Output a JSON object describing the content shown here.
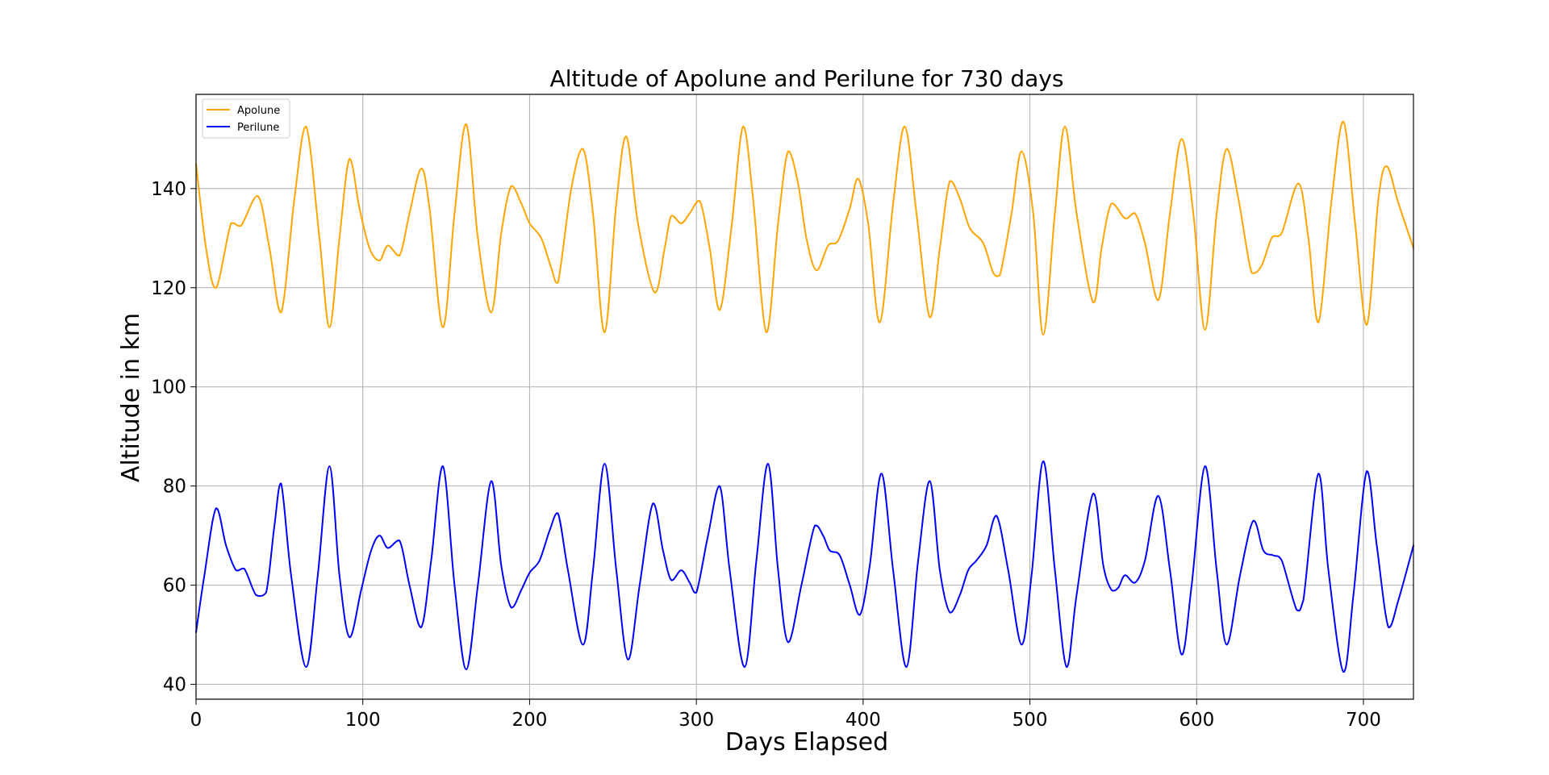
{
  "chart_data": {
    "type": "line",
    "title": "Altitude of Apolune and Perilune for 730 days",
    "xlabel": "Days Elapsed",
    "ylabel": "Altitude in km",
    "xlim": [
      0,
      730
    ],
    "ylim": [
      37,
      159
    ],
    "xticks": [
      0,
      100,
      200,
      300,
      400,
      500,
      600,
      700
    ],
    "yticks": [
      40,
      60,
      80,
      100,
      120,
      140
    ],
    "grid": true,
    "legend_position": "top-left",
    "series": [
      {
        "name": "Apolune",
        "color": "#FFA500",
        "points": [
          [
            0,
            145
          ],
          [
            6,
            128
          ],
          [
            12,
            120
          ],
          [
            21,
            133
          ],
          [
            27,
            132.5
          ],
          [
            37,
            138.5
          ],
          [
            44,
            128
          ],
          [
            51,
            115
          ],
          [
            59,
            138
          ],
          [
            66,
            152.5
          ],
          [
            74,
            130
          ],
          [
            80,
            112
          ],
          [
            86,
            130
          ],
          [
            92,
            146
          ],
          [
            98,
            136
          ],
          [
            104,
            128
          ],
          [
            110,
            125.5
          ],
          [
            115,
            128.5
          ],
          [
            122,
            126.5
          ],
          [
            128,
            135
          ],
          [
            135,
            144
          ],
          [
            140,
            136
          ],
          [
            148,
            112
          ],
          [
            155,
            135
          ],
          [
            162,
            153
          ],
          [
            169,
            130
          ],
          [
            177,
            115
          ],
          [
            183,
            131
          ],
          [
            189,
            140.5
          ],
          [
            195,
            137
          ],
          [
            200,
            133
          ],
          [
            207,
            130
          ],
          [
            213,
            124
          ],
          [
            217,
            121
          ],
          [
            225,
            140
          ],
          [
            232,
            148
          ],
          [
            238,
            135
          ],
          [
            245,
            111
          ],
          [
            252,
            137
          ],
          [
            258,
            150.5
          ],
          [
            265,
            133
          ],
          [
            275,
            119
          ],
          [
            281,
            128
          ],
          [
            285,
            134.5
          ],
          [
            291,
            133
          ],
          [
            296,
            135
          ],
          [
            302,
            137.5
          ],
          [
            308,
            128
          ],
          [
            314,
            115.5
          ],
          [
            321,
            132
          ],
          [
            328,
            152.5
          ],
          [
            334,
            138
          ],
          [
            342,
            111
          ],
          [
            349,
            133
          ],
          [
            355,
            147.5
          ],
          [
            361,
            141
          ],
          [
            366,
            130
          ],
          [
            372,
            123.5
          ],
          [
            379,
            128.5
          ],
          [
            385,
            129.5
          ],
          [
            392,
            136
          ],
          [
            397,
            142
          ],
          [
            403,
            133
          ],
          [
            410,
            113
          ],
          [
            418,
            137
          ],
          [
            425,
            152.5
          ],
          [
            432,
            135
          ],
          [
            440,
            114
          ],
          [
            446,
            128
          ],
          [
            452,
            141.5
          ],
          [
            458,
            138
          ],
          [
            464,
            132
          ],
          [
            472,
            129
          ],
          [
            478,
            123
          ],
          [
            482,
            122.5
          ],
          [
            489,
            135
          ],
          [
            495,
            147.5
          ],
          [
            502,
            135
          ],
          [
            508,
            110.5
          ],
          [
            515,
            135
          ],
          [
            521,
            152.5
          ],
          [
            528,
            135
          ],
          [
            538,
            117
          ],
          [
            543,
            128
          ],
          [
            549,
            137
          ],
          [
            557,
            134
          ],
          [
            563,
            135
          ],
          [
            569,
            129
          ],
          [
            577,
            117.5
          ],
          [
            584,
            135
          ],
          [
            591,
            150
          ],
          [
            598,
            135
          ],
          [
            605,
            111.5
          ],
          [
            612,
            135
          ],
          [
            618,
            148
          ],
          [
            625,
            138
          ],
          [
            633,
            123
          ],
          [
            639,
            124.5
          ],
          [
            645,
            130
          ],
          [
            651,
            131
          ],
          [
            661,
            141
          ],
          [
            667,
            130
          ],
          [
            673,
            113
          ],
          [
            681,
            138
          ],
          [
            688,
            153.5
          ],
          [
            695,
            133
          ],
          [
            702,
            112.5
          ],
          [
            709,
            138
          ],
          [
            714,
            144.5
          ],
          [
            721,
            137
          ],
          [
            730,
            128
          ]
        ]
      },
      {
        "name": "Perilune",
        "color": "#0000FF",
        "points": [
          [
            0,
            50.5
          ],
          [
            5,
            62
          ],
          [
            12,
            75.5
          ],
          [
            18,
            68
          ],
          [
            24,
            63
          ],
          [
            29,
            63.3
          ],
          [
            36,
            58
          ],
          [
            42,
            58.5
          ],
          [
            47,
            72
          ],
          [
            51,
            80.5
          ],
          [
            57,
            62
          ],
          [
            66,
            43.5
          ],
          [
            73,
            62
          ],
          [
            80,
            84
          ],
          [
            86,
            62
          ],
          [
            92,
            49.5
          ],
          [
            99,
            59
          ],
          [
            105,
            67
          ],
          [
            110,
            70
          ],
          [
            115,
            67.5
          ],
          [
            122,
            69
          ],
          [
            128,
            60
          ],
          [
            135,
            51.5
          ],
          [
            141,
            65
          ],
          [
            148,
            84
          ],
          [
            155,
            60
          ],
          [
            162,
            43
          ],
          [
            169,
            60
          ],
          [
            177,
            81
          ],
          [
            183,
            64
          ],
          [
            189,
            55.5
          ],
          [
            195,
            59
          ],
          [
            200,
            62.5
          ],
          [
            206,
            65
          ],
          [
            212,
            71
          ],
          [
            217,
            74.5
          ],
          [
            223,
            63
          ],
          [
            232,
            48
          ],
          [
            238,
            63
          ],
          [
            245,
            84.5
          ],
          [
            252,
            63
          ],
          [
            259,
            45
          ],
          [
            266,
            60
          ],
          [
            274,
            76.5
          ],
          [
            280,
            67
          ],
          [
            285,
            61
          ],
          [
            291,
            63
          ],
          [
            296,
            60.5
          ],
          [
            300,
            58.5
          ],
          [
            307,
            70
          ],
          [
            314,
            80
          ],
          [
            320,
            63
          ],
          [
            329,
            43.5
          ],
          [
            336,
            65
          ],
          [
            343,
            84.5
          ],
          [
            349,
            63
          ],
          [
            355,
            48.5
          ],
          [
            363,
            60
          ],
          [
            371,
            72
          ],
          [
            376,
            70
          ],
          [
            380,
            67
          ],
          [
            386,
            66
          ],
          [
            392,
            60
          ],
          [
            398,
            54
          ],
          [
            404,
            64
          ],
          [
            411,
            82.5
          ],
          [
            418,
            63
          ],
          [
            426,
            43.5
          ],
          [
            433,
            65
          ],
          [
            440,
            81
          ],
          [
            446,
            63
          ],
          [
            452,
            54.5
          ],
          [
            458,
            58
          ],
          [
            463,
            63
          ],
          [
            468,
            65
          ],
          [
            474,
            68
          ],
          [
            480,
            74
          ],
          [
            487,
            63
          ],
          [
            495,
            48
          ],
          [
            501,
            62
          ],
          [
            508,
            85
          ],
          [
            515,
            63
          ],
          [
            522,
            43.5
          ],
          [
            528,
            58
          ],
          [
            538,
            78.5
          ],
          [
            544,
            64
          ],
          [
            549,
            59
          ],
          [
            553,
            59.5
          ],
          [
            557,
            62
          ],
          [
            563,
            60.5
          ],
          [
            569,
            65
          ],
          [
            577,
            78
          ],
          [
            584,
            63
          ],
          [
            591,
            46
          ],
          [
            597,
            60
          ],
          [
            605,
            84
          ],
          [
            612,
            63
          ],
          [
            618,
            48
          ],
          [
            626,
            62
          ],
          [
            634,
            73
          ],
          [
            640,
            67
          ],
          [
            646,
            66
          ],
          [
            651,
            65
          ],
          [
            660,
            55
          ],
          [
            664,
            57
          ],
          [
            673,
            82.5
          ],
          [
            679,
            63
          ],
          [
            688,
            42.5
          ],
          [
            694,
            58
          ],
          [
            702,
            83
          ],
          [
            708,
            68
          ],
          [
            715,
            51.5
          ],
          [
            721,
            57
          ],
          [
            730,
            68
          ]
        ]
      }
    ]
  }
}
